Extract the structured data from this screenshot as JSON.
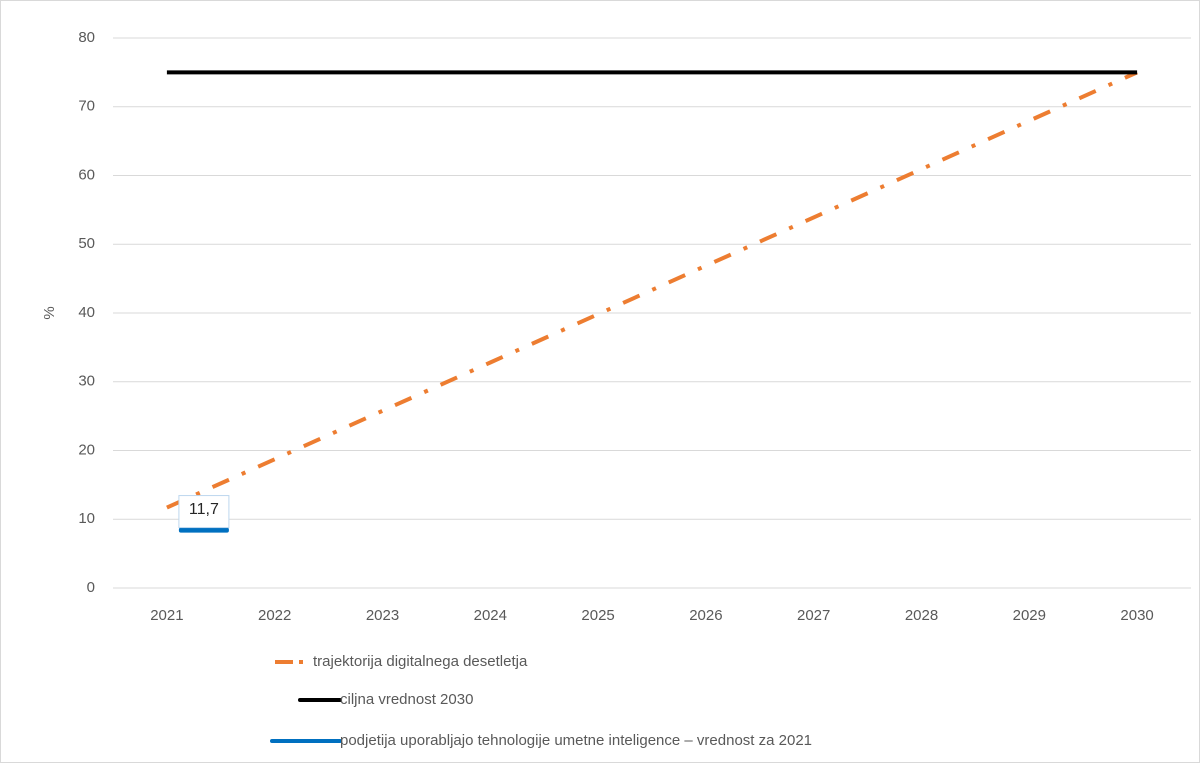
{
  "chart_data": {
    "type": "line",
    "y_label": "%",
    "categories": [
      "2021",
      "2022",
      "2023",
      "2024",
      "2025",
      "2026",
      "2027",
      "2028",
      "2029",
      "2030"
    ],
    "series": [
      {
        "name": "trajektorija digitalnega desetletja",
        "color": "#ed7d31",
        "dash": "dashdot",
        "values": [
          11.7,
          18.73,
          25.77,
          32.8,
          39.83,
          46.87,
          53.9,
          60.93,
          67.97,
          75
        ]
      },
      {
        "name": "ciljna vrednost 2030",
        "color": "#000000",
        "dash": "solid",
        "values": [
          75,
          75,
          75,
          75,
          75,
          75,
          75,
          75,
          75,
          75
        ]
      },
      {
        "name": "podjetija uporabljajo tehnologije umetne inteligence – vrednost za 2021",
        "color": "#0070c0",
        "dash": "solid",
        "values": [
          11.7,
          null,
          null,
          null,
          null,
          null,
          null,
          null,
          null,
          null
        ],
        "value_labels": [
          "11,7",
          null,
          null,
          null,
          null,
          null,
          null,
          null,
          null,
          null
        ]
      }
    ],
    "ylim": [
      0,
      80
    ],
    "yticks": [
      0,
      10,
      20,
      30,
      40,
      50,
      60,
      70,
      80
    ],
    "grid": true,
    "legend": "bottom"
  }
}
